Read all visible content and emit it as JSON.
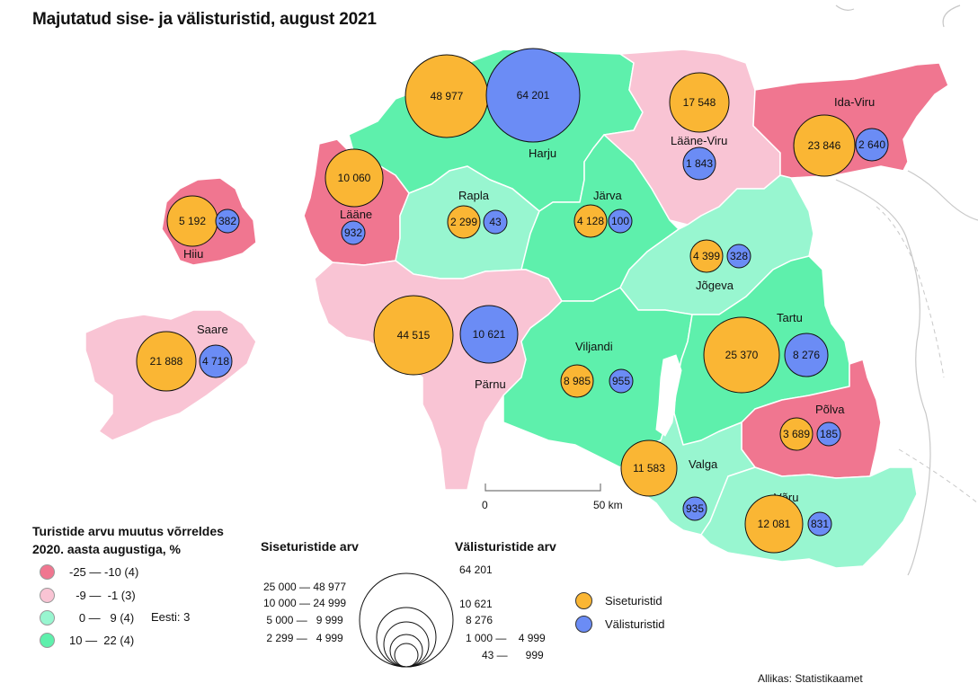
{
  "title": "Majutatud sise- ja välisturistid, august 2021",
  "colors": {
    "change_neg_large": "#f07690",
    "change_neg_small": "#f9c4d4",
    "change_pos_small": "#98f6d0",
    "change_pos_large": "#5ef0ac",
    "domestic": "#fab634",
    "foreign": "#6b8cf5",
    "border": "#ffffff",
    "background_land": "#ffffff"
  },
  "counties": [
    {
      "name": "Harju",
      "category": "pos_large",
      "domestic": 48977,
      "domestic_label": "48 977",
      "foreign": 64201,
      "foreign_label": "64 201"
    },
    {
      "name": "Lääne-Viru",
      "category": "neg_small",
      "domestic": 17548,
      "domestic_label": "17 548",
      "foreign": 1843,
      "foreign_label": "1 843"
    },
    {
      "name": "Ida-Viru",
      "category": "neg_large",
      "domestic": 23846,
      "domestic_label": "23 846",
      "foreign": 2640,
      "foreign_label": "2 640"
    },
    {
      "name": "Lääne",
      "category": "neg_large",
      "domestic": 10060,
      "domestic_label": "10 060",
      "foreign": 932,
      "foreign_label": "932"
    },
    {
      "name": "Hiiu",
      "category": "neg_large",
      "domestic": 5192,
      "domestic_label": "5 192",
      "foreign": 382,
      "foreign_label": "382"
    },
    {
      "name": "Rapla",
      "category": "pos_small",
      "domestic": 2299,
      "domestic_label": "2 299",
      "foreign": 43,
      "foreign_label": "43"
    },
    {
      "name": "Järva",
      "category": "pos_large",
      "domestic": 4128,
      "domestic_label": "4 128",
      "foreign": 100,
      "foreign_label": "100"
    },
    {
      "name": "Jõgeva",
      "category": "pos_small",
      "domestic": 4399,
      "domestic_label": "4 399",
      "foreign": 328,
      "foreign_label": "328"
    },
    {
      "name": "Saare",
      "category": "neg_small",
      "domestic": 21888,
      "domestic_label": "21 888",
      "foreign": 4718,
      "foreign_label": "4 718"
    },
    {
      "name": "Pärnu",
      "category": "neg_small",
      "domestic": 44515,
      "domestic_label": "44 515",
      "foreign": 10621,
      "foreign_label": "10 621"
    },
    {
      "name": "Viljandi",
      "category": "pos_large",
      "domestic": 8985,
      "domestic_label": "8 985",
      "foreign": 955,
      "foreign_label": "955"
    },
    {
      "name": "Tartu",
      "category": "pos_large",
      "domestic": 25370,
      "domestic_label": "25 370",
      "foreign": 8276,
      "foreign_label": "8 276"
    },
    {
      "name": "Põlva",
      "category": "neg_large",
      "domestic": 3689,
      "domestic_label": "3 689",
      "foreign": 185,
      "foreign_label": "185"
    },
    {
      "name": "Valga",
      "category": "pos_small",
      "domestic": 11583,
      "domestic_label": "11 583",
      "foreign": 935,
      "foreign_label": "935"
    },
    {
      "name": "Võru",
      "category": "pos_small",
      "domestic": 12081,
      "domestic_label": "12 081",
      "foreign": 831,
      "foreign_label": "831"
    }
  ],
  "scale": {
    "zero": "0",
    "end": "50 km"
  },
  "change_legend": {
    "title_line1": "Turistide arvu muutus võrreldes",
    "title_line2": "2020. aasta augustiga, %",
    "items": [
      {
        "label": "-25 — -10 (4)",
        "color": "#f07690"
      },
      {
        "label": "  -9 —  -1 (3)",
        "color": "#f9c4d4"
      },
      {
        "label": "   0 —   9 (4)",
        "color": "#98f6d0"
      },
      {
        "label": "10 —  22 (4)",
        "color": "#5ef0ac"
      }
    ],
    "eesti": "Eesti: 3"
  },
  "size_legend": {
    "domestic_title": "Siseturistide arv",
    "foreign_title": "Välisturistide arv",
    "domestic_classes": [
      "25 000 — 48 977",
      "10 000 — 24 999",
      " 5 000 —   9 999",
      " 2 299 —   4 999"
    ],
    "foreign_classes": [
      "64 201",
      "10 621",
      "8 276",
      "1 000 —    4 999",
      "43 —      999"
    ]
  },
  "dot_legend": {
    "domestic": "Siseturistid",
    "foreign": "Välisturistid"
  },
  "source": "Allikas: Statistikaamet"
}
